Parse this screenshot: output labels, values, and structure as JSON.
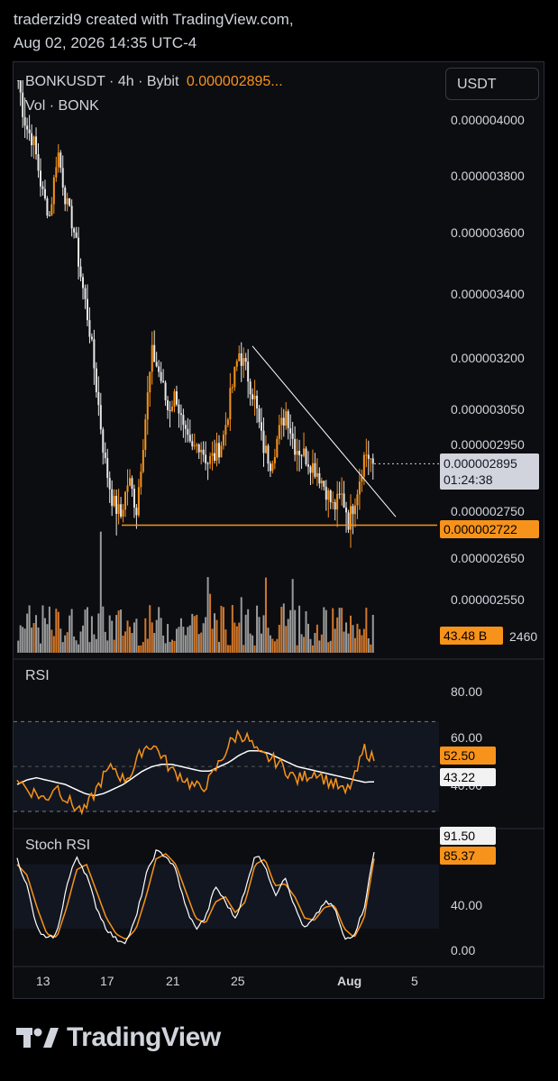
{
  "header": {
    "line1": "traderzid9 created with TradingView.com,",
    "line2": "Aug 02, 2026 14:35 UTC-4"
  },
  "legend": {
    "symbol": "BONKUSDT · 4h · Bybit",
    "price": "0.000002895...",
    "volume": "Vol · BONK"
  },
  "currency_button": "USDT",
  "brand": "TradingView",
  "colors": {
    "up": "#f7931a",
    "down": "#e8e8e8",
    "support": "#f7931a",
    "rsi": "#f7931a",
    "rsi_ma": "#ffffff",
    "volume_up": "#d2772a",
    "volume_down": "#9a9a9a"
  },
  "chart_data": [
    {
      "type": "candlestick",
      "symbol": "BONKUSDT",
      "interval": "4h",
      "exchange": "Bybit",
      "x_ticks": [
        "13",
        "17",
        "21",
        "25",
        "Aug",
        "5"
      ],
      "y_ticks": [
        "0.000004000",
        "0.000003800",
        "0.000003600",
        "0.000003400",
        "0.000003200",
        "0.000003050",
        "0.000002950",
        "0.000002750",
        "0.000002650",
        "0.000002550",
        "2460"
      ],
      "ylim": [
        2.46e-06,
        4.1e-06
      ],
      "last_price": "0.000002895",
      "countdown": "01:24:38",
      "support_level": "0.000002722",
      "trendline": {
        "from_price": 3.24e-06,
        "to_price": 2.74e-06
      },
      "close_path": [
        4.1e-06,
        3.98e-06,
        3.92e-06,
        3.75e-06,
        3.66e-06,
        3.9e-06,
        3.72e-06,
        3.62e-06,
        3.45e-06,
        3.3e-06,
        3.1e-06,
        2.9e-06,
        2.78e-06,
        2.74e-06,
        2.85e-06,
        2.76e-06,
        3e-06,
        3.22e-06,
        3.15e-06,
        3.05e-06,
        3.1e-06,
        2.98e-06,
        2.93e-06,
        2.96e-06,
        2.9e-06,
        2.92e-06,
        2.97e-06,
        3.1e-06,
        3.22e-06,
        3.16e-06,
        3.08e-06,
        2.95e-06,
        2.9e-06,
        2.98e-06,
        3.05e-06,
        2.95e-06,
        2.93e-06,
        2.9e-06,
        2.87e-06,
        2.82e-06,
        2.76e-06,
        2.8e-06,
        2.73e-06,
        2.82e-06,
        2.93e-06,
        2.9e-06
      ]
    },
    {
      "type": "bar",
      "name": "Vol · BONK",
      "last_value": "43.48 B"
    },
    {
      "type": "line",
      "name": "RSI",
      "y_ticks": [
        "80.00",
        "60.00",
        "40.00"
      ],
      "ylim": [
        30,
        85
      ],
      "bands": [
        70,
        30
      ],
      "rsi_last": "52.50",
      "ma_last": "43.22",
      "rsi_path": [
        45,
        40,
        38,
        35,
        42,
        36,
        32,
        30,
        38,
        46,
        50,
        44,
        48,
        58,
        60,
        55,
        48,
        46,
        42,
        40,
        44,
        52,
        60,
        65,
        62,
        55,
        54,
        52,
        48,
        44,
        46,
        48,
        44,
        42,
        38,
        45,
        58,
        52.5
      ],
      "ma_path": [
        42,
        44,
        45,
        44,
        43,
        42,
        40,
        38,
        37,
        38,
        40,
        42,
        45,
        48,
        50,
        51,
        51,
        50,
        49,
        48,
        48,
        50,
        52,
        55,
        57,
        57,
        56,
        54,
        52,
        50,
        49,
        48,
        47,
        46,
        45,
        44,
        43,
        43.22
      ]
    },
    {
      "type": "line",
      "name": "Stoch RSI",
      "y_ticks": [
        "40.00",
        "0.00"
      ],
      "ylim": [
        0,
        105
      ],
      "bands": [
        80,
        20
      ],
      "k_last": "91.50",
      "d_last": "85.37",
      "k_path": [
        85,
        60,
        20,
        10,
        15,
        60,
        88,
        70,
        40,
        20,
        10,
        8,
        30,
        70,
        92,
        88,
        75,
        40,
        20,
        30,
        60,
        45,
        30,
        55,
        90,
        80,
        50,
        70,
        40,
        20,
        30,
        45,
        40,
        10,
        15,
        40,
        91.5
      ],
      "d_path": [
        80,
        70,
        40,
        15,
        12,
        40,
        75,
        80,
        55,
        30,
        15,
        10,
        20,
        50,
        85,
        90,
        80,
        55,
        30,
        25,
        45,
        50,
        35,
        45,
        80,
        85,
        60,
        62,
        50,
        30,
        28,
        40,
        42,
        20,
        12,
        30,
        85.37
      ]
    }
  ]
}
